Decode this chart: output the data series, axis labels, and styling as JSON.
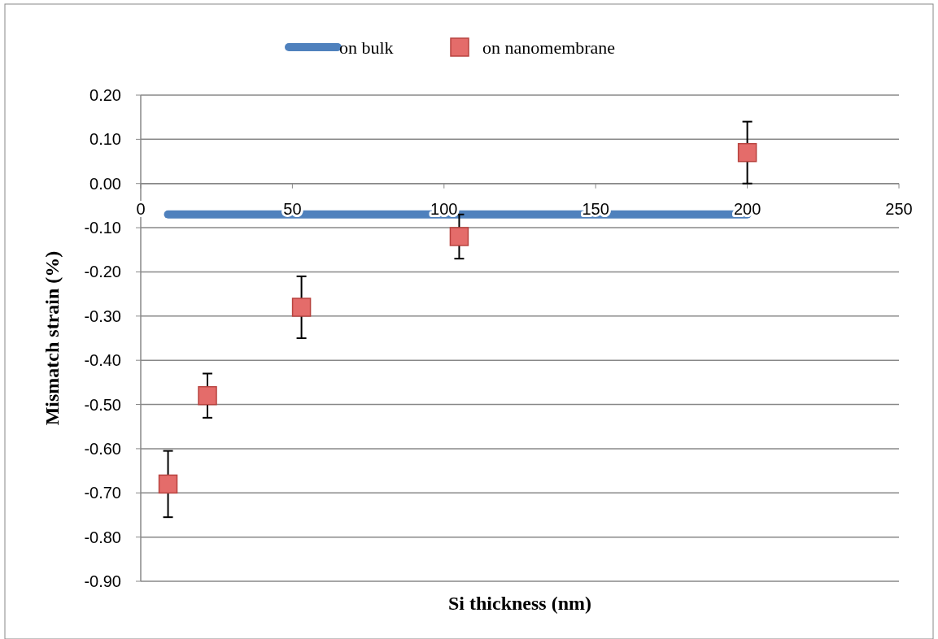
{
  "chart_data": {
    "type": "scatter",
    "xlabel": "Si thickness (nm)",
    "ylabel": "Mismatch strain (%)",
    "xlim": [
      0,
      250
    ],
    "xticks": [
      0,
      50,
      100,
      150,
      200,
      250
    ],
    "ylim": [
      -0.9,
      0.2
    ],
    "yticks": [
      {
        "value": 0.2,
        "label": "0.20"
      },
      {
        "value": 0.1,
        "label": "0.10"
      },
      {
        "value": 0,
        "label": "0.00"
      },
      {
        "value": -0.1,
        "label": "-0.10"
      },
      {
        "value": -0.2,
        "label": "-0.20"
      },
      {
        "value": -0.3,
        "label": "-0.30"
      },
      {
        "value": -0.4,
        "label": "-0.40"
      },
      {
        "value": -0.5,
        "label": "-0.50"
      },
      {
        "value": -0.6,
        "label": "-0.60"
      },
      {
        "value": -0.7,
        "label": "-0.70"
      },
      {
        "value": -0.8,
        "label": "-0.80"
      },
      {
        "value": -0.9,
        "label": "-0.90"
      }
    ],
    "grid": "y",
    "legend": "top",
    "series": [
      {
        "name": "on bulk",
        "type": "line",
        "color": "#4f81bd",
        "x": [
          9,
          200
        ],
        "values": [
          -0.07,
          -0.07
        ],
        "marker": "none"
      },
      {
        "name": "on nanomembrane",
        "color": "#e46c6a",
        "marker": "square",
        "x": [
          9,
          22,
          53,
          105,
          200
        ],
        "values": [
          -0.68,
          -0.48,
          -0.28,
          -0.12,
          0.07
        ],
        "errors": [
          0.075,
          0.05,
          0.07,
          0.05,
          0.07
        ]
      }
    ]
  }
}
